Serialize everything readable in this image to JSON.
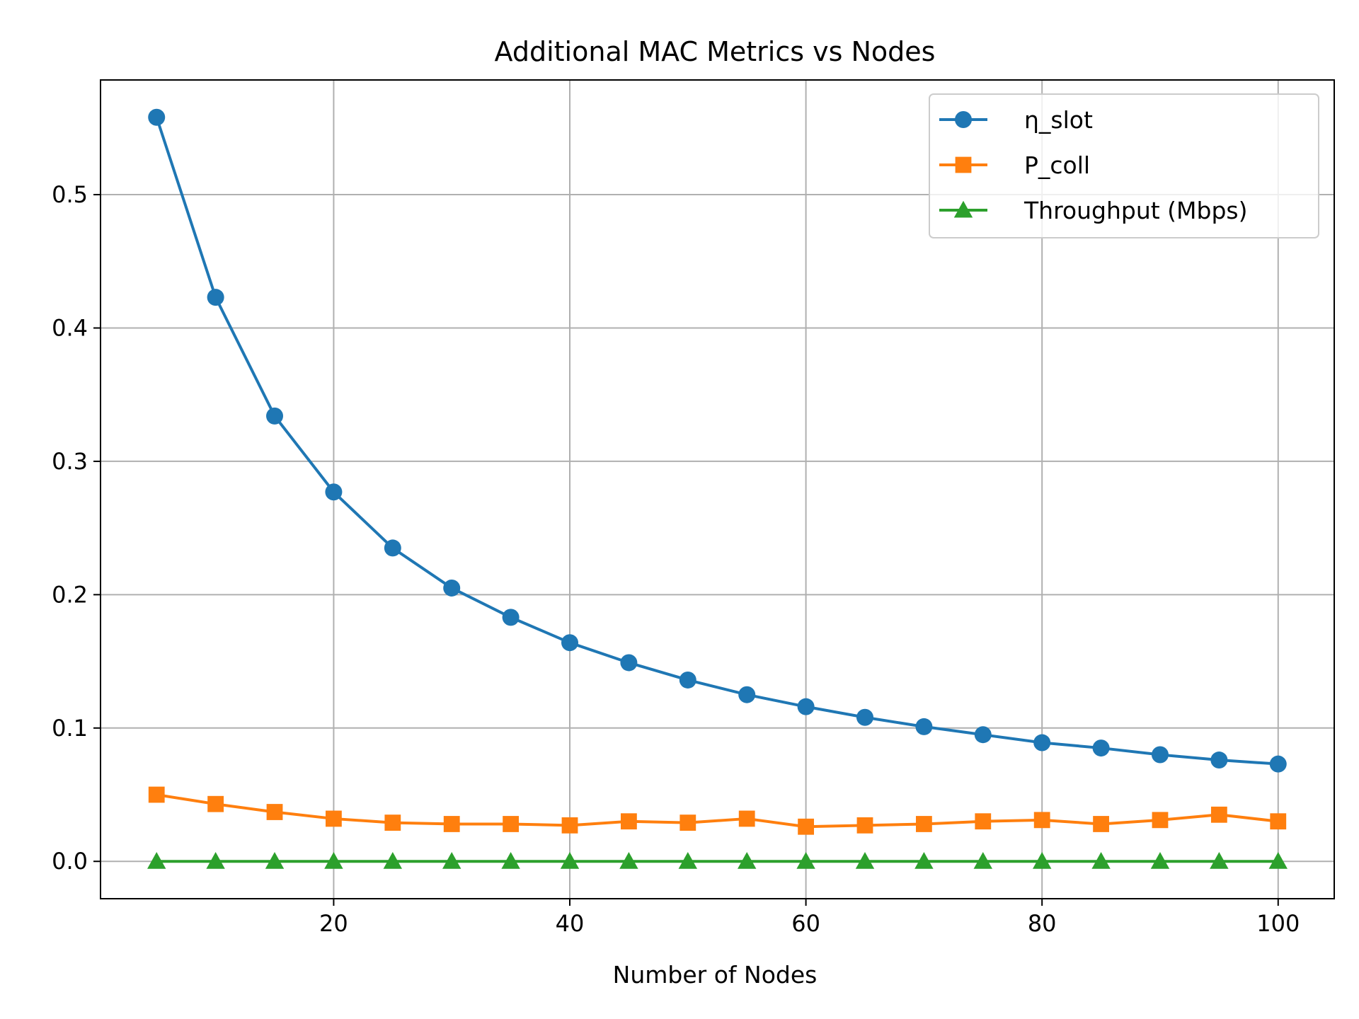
{
  "chart_data": {
    "type": "line",
    "title": "Additional MAC Metrics vs Nodes",
    "xlabel": "Number of Nodes",
    "ylabel": "",
    "x": [
      5,
      10,
      15,
      20,
      25,
      30,
      35,
      40,
      45,
      50,
      55,
      60,
      65,
      70,
      75,
      80,
      85,
      90,
      95,
      100
    ],
    "xlim": [
      0.25,
      104.75
    ],
    "ylim": [
      -0.028,
      0.586
    ],
    "xticks": [
      20,
      40,
      60,
      80,
      100
    ],
    "xtick_labels": [
      "20",
      "40",
      "60",
      "80",
      "100"
    ],
    "yticks": [
      0.0,
      0.1,
      0.2,
      0.3,
      0.4,
      0.5
    ],
    "ytick_labels": [
      "0.0",
      "0.1",
      "0.2",
      "0.3",
      "0.4",
      "0.5"
    ],
    "grid": true,
    "legend_position": "top-right",
    "series": [
      {
        "name": "η_slot",
        "marker": "circle",
        "color": "#1f77b4",
        "values": [
          0.558,
          0.423,
          0.334,
          0.277,
          0.235,
          0.205,
          0.183,
          0.164,
          0.149,
          0.136,
          0.125,
          0.116,
          0.108,
          0.101,
          0.095,
          0.089,
          0.085,
          0.08,
          0.076,
          0.073
        ]
      },
      {
        "name": "P_coll",
        "marker": "square",
        "color": "#ff7f0e",
        "values": [
          0.05,
          0.043,
          0.037,
          0.032,
          0.029,
          0.028,
          0.028,
          0.027,
          0.03,
          0.029,
          0.032,
          0.026,
          0.027,
          0.028,
          0.03,
          0.031,
          0.028,
          0.031,
          0.035,
          0.03
        ]
      },
      {
        "name": "Throughput (Mbps)",
        "marker": "triangle",
        "color": "#2ca02c",
        "values": [
          0,
          0,
          0,
          0,
          0,
          0,
          0,
          0,
          0,
          0,
          0,
          0,
          0,
          0,
          0,
          0,
          0,
          0,
          0,
          0
        ]
      }
    ]
  }
}
